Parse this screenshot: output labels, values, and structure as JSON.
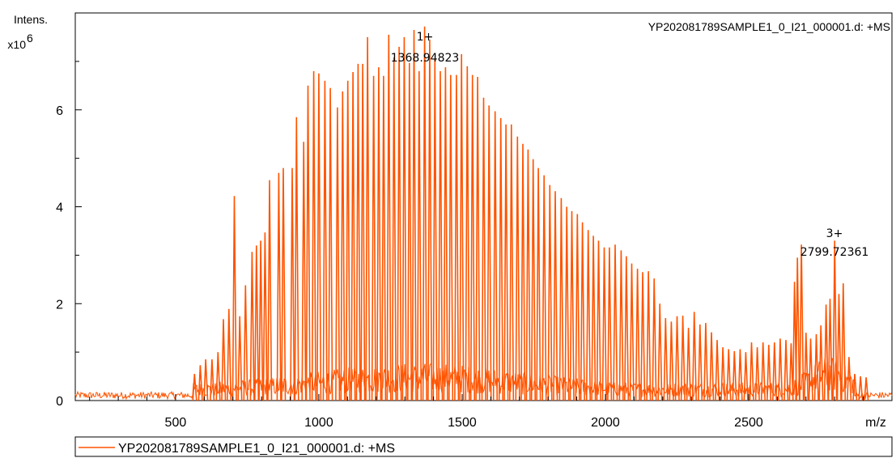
{
  "chart_data": {
    "type": "line",
    "title": "YP202081789SAMPLE1_0_I21_000001.d: +MS",
    "ylabel_line1": "Intens.",
    "ylabel_line2": "x10",
    "ylabel_exp": "6",
    "xlabel": "m/z",
    "xlim": [
      150,
      3000
    ],
    "ylim": [
      0,
      8
    ],
    "grid": false,
    "color": "#ff5400",
    "xticks": [
      500,
      1000,
      1500,
      2000,
      2500
    ],
    "yticks": [
      0,
      2,
      4,
      6
    ],
    "xtick_labels": [
      "500",
      "1000",
      "1500",
      "2000",
      "2500"
    ],
    "ytick_labels": [
      "0",
      "2",
      "4",
      "6"
    ],
    "annotations": [
      {
        "charge": "1+",
        "mz": "1368.94823",
        "x": 1368.9,
        "y": 7.72
      },
      {
        "charge": "3+",
        "mz": "2799.72361",
        "x": 2799.7,
        "y": 3.3
      }
    ],
    "legend": {
      "label": "YP202081789SAMPLE1_0_I21_000001.d: +MS",
      "position": "bottom"
    },
    "series": [
      {
        "name": "YP202081789SAMPLE1_0_I21_000001.d: +MS",
        "peaks": [
          [
            566,
            0.55
          ],
          [
            586,
            0.73
          ],
          [
            605,
            0.85
          ],
          [
            627,
            0.85
          ],
          [
            648,
            1.0
          ],
          [
            667,
            1.68
          ],
          [
            686,
            1.89
          ],
          [
            705,
            4.22
          ],
          [
            724,
            1.74
          ],
          [
            744,
            2.38
          ],
          [
            767,
            3.07
          ],
          [
            782,
            3.2
          ],
          [
            797,
            3.3
          ],
          [
            812,
            3.47
          ],
          [
            828,
            4.55
          ],
          [
            860,
            4.7
          ],
          [
            876,
            4.8
          ],
          [
            907,
            4.8
          ],
          [
            922,
            5.85
          ],
          [
            947,
            5.34
          ],
          [
            962,
            6.5
          ],
          [
            982,
            6.8
          ],
          [
            1000,
            6.75
          ],
          [
            1021,
            6.6
          ],
          [
            1040,
            6.45
          ],
          [
            1065,
            6.05
          ],
          [
            1083,
            6.38
          ],
          [
            1101,
            6.6
          ],
          [
            1119,
            6.78
          ],
          [
            1137,
            6.95
          ],
          [
            1153,
            6.95
          ],
          [
            1170,
            7.5
          ],
          [
            1191,
            6.7
          ],
          [
            1209,
            6.88
          ],
          [
            1226,
            6.7
          ],
          [
            1244,
            7.55
          ],
          [
            1262,
            7.08
          ],
          [
            1280,
            7.3
          ],
          [
            1298,
            7.5
          ],
          [
            1316,
            6.97
          ],
          [
            1332,
            7.65
          ],
          [
            1350,
            6.8
          ],
          [
            1369,
            7.72
          ],
          [
            1387,
            7.45
          ],
          [
            1405,
            7.05
          ],
          [
            1424,
            6.8
          ],
          [
            1442,
            6.88
          ],
          [
            1460,
            6.72
          ],
          [
            1480,
            6.72
          ],
          [
            1498,
            7.15
          ],
          [
            1518,
            6.9
          ],
          [
            1536,
            6.72
          ],
          [
            1554,
            6.68
          ],
          [
            1575,
            6.25
          ],
          [
            1594,
            6.09
          ],
          [
            1615,
            5.97
          ],
          [
            1635,
            5.83
          ],
          [
            1653,
            5.7
          ],
          [
            1672,
            5.7
          ],
          [
            1693,
            5.45
          ],
          [
            1712,
            5.3
          ],
          [
            1730,
            5.18
          ],
          [
            1748,
            4.98
          ],
          [
            1766,
            4.8
          ],
          [
            1786,
            4.65
          ],
          [
            1806,
            4.45
          ],
          [
            1825,
            4.32
          ],
          [
            1846,
            4.18
          ],
          [
            1865,
            4.0
          ],
          [
            1883,
            3.91
          ],
          [
            1902,
            3.85
          ],
          [
            1920,
            3.68
          ],
          [
            1940,
            3.52
          ],
          [
            1958,
            3.4
          ],
          [
            1976,
            3.3
          ],
          [
            1996,
            3.16
          ],
          [
            2014,
            3.16
          ],
          [
            2034,
            3.22
          ],
          [
            2055,
            3.1
          ],
          [
            2073,
            2.98
          ],
          [
            2092,
            2.83
          ],
          [
            2112,
            2.72
          ],
          [
            2130,
            2.65
          ],
          [
            2150,
            2.67
          ],
          [
            2170,
            2.52
          ],
          [
            2190,
            2.0
          ],
          [
            2210,
            1.7
          ],
          [
            2230,
            1.63
          ],
          [
            2250,
            1.74
          ],
          [
            2270,
            1.75
          ],
          [
            2290,
            1.5
          ],
          [
            2310,
            1.83
          ],
          [
            2330,
            1.57
          ],
          [
            2350,
            1.6
          ],
          [
            2370,
            1.41
          ],
          [
            2390,
            1.25
          ],
          [
            2410,
            1.1
          ],
          [
            2430,
            1.06
          ],
          [
            2450,
            1.02
          ],
          [
            2470,
            1.06
          ],
          [
            2490,
            1.0
          ],
          [
            2510,
            1.2
          ],
          [
            2530,
            1.1
          ],
          [
            2550,
            1.2
          ],
          [
            2570,
            1.15
          ],
          [
            2590,
            1.2
          ],
          [
            2610,
            1.28
          ],
          [
            2630,
            1.25
          ],
          [
            2648,
            1.18
          ],
          [
            2660,
            2.45
          ],
          [
            2670,
            2.95
          ],
          [
            2684,
            3.22
          ],
          [
            2700,
            1.4
          ],
          [
            2716,
            1.28
          ],
          [
            2736,
            1.37
          ],
          [
            2752,
            1.55
          ],
          [
            2770,
            1.98
          ],
          [
            2784,
            2.1
          ],
          [
            2800,
            3.3
          ],
          [
            2815,
            2.2
          ],
          [
            2830,
            2.42
          ],
          [
            2850,
            0.9
          ],
          [
            2870,
            0.55
          ],
          [
            2890,
            0.5
          ],
          [
            2910,
            0.48
          ]
        ]
      }
    ]
  }
}
